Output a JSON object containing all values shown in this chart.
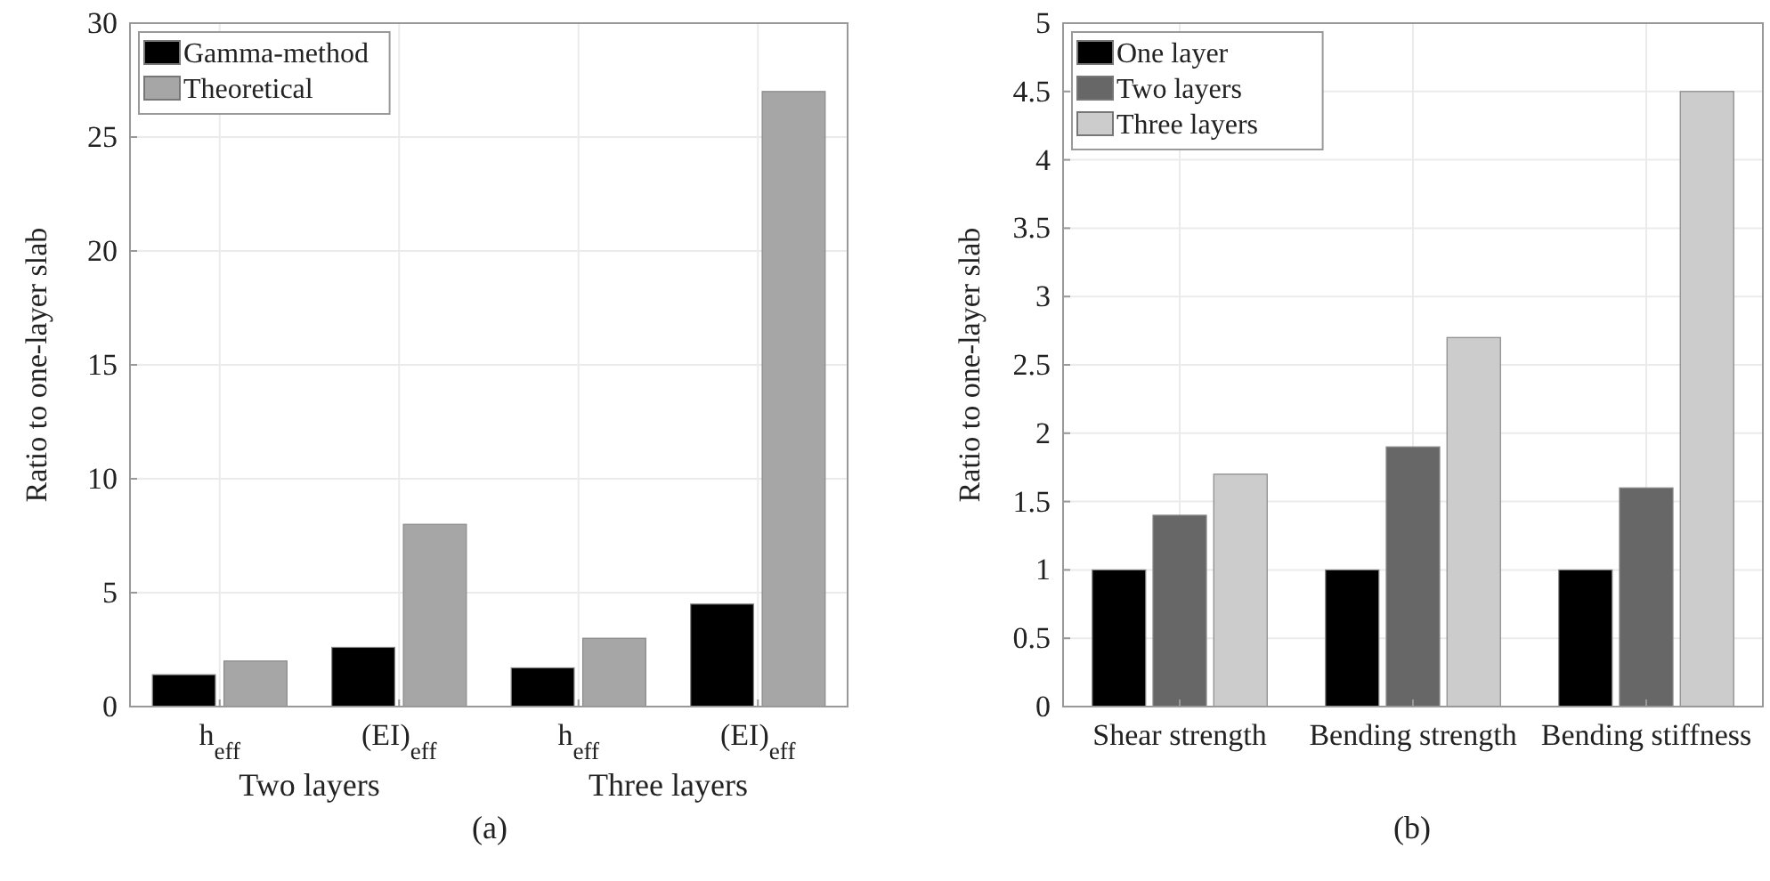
{
  "chart_data": [
    {
      "type": "bar",
      "ylabel": "Ratio to one-layer slab",
      "categories": [
        "h$_{eff}$",
        "(EI)$_{eff}$",
        "h$_{eff}$",
        "(EI)$_{eff}$"
      ],
      "series": [
        {
          "name": "Gamma-method",
          "color": "#000000",
          "values": [
            1.4,
            2.6,
            1.7,
            4.5
          ]
        },
        {
          "name": "Theoretical",
          "color": "#a6a6a6",
          "values": [
            2,
            8,
            3,
            27
          ]
        }
      ],
      "ylim": [
        0,
        30
      ],
      "yticks": [
        0,
        5,
        10,
        15,
        20,
        25,
        30
      ],
      "grid": true,
      "legend": "top left",
      "annotations": [
        "Two layers",
        "Three layers",
        "(a)"
      ]
    },
    {
      "type": "bar",
      "ylabel": "Ratio to one-layer slab",
      "categories": [
        "Shear strength",
        "Bending strength",
        "Bending stiffness"
      ],
      "series": [
        {
          "name": "One layer",
          "color": "#000000",
          "values": [
            1,
            1,
            1
          ]
        },
        {
          "name": "Two layers",
          "color": "#676767",
          "values": [
            1.4,
            1.9,
            1.6
          ]
        },
        {
          "name": "Three layers",
          "color": "#cccccc",
          "values": [
            1.7,
            2.7,
            4.5
          ]
        }
      ],
      "ylim": [
        0,
        5
      ],
      "yticks": [
        0,
        0.5,
        1,
        1.5,
        2,
        2.5,
        3,
        3.5,
        4,
        4.5,
        5
      ],
      "grid": true,
      "legend": "top left",
      "annotations": [
        "(b)"
      ]
    }
  ]
}
